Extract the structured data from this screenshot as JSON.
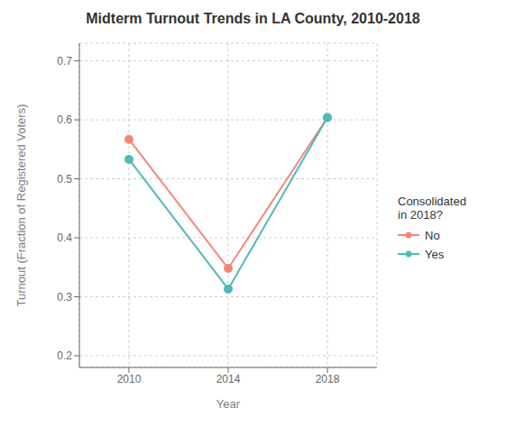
{
  "chart_data": {
    "type": "line",
    "title": "Midterm Turnout Trends in LA County, 2010-2018",
    "x_label": "Year",
    "y_label": "Turnout (Fraction of Registered Voters)",
    "x": [
      2010,
      2014,
      2018
    ],
    "series": [
      {
        "name": "No",
        "color": "#F4877A",
        "values": [
          0.567,
          0.348,
          0.604
        ],
        "marker": "circle",
        "line_style": "solid"
      },
      {
        "name": "Yes",
        "color": "#53B8BB",
        "values": [
          0.533,
          0.313,
          0.604
        ],
        "marker": "circle",
        "line_style": "solid"
      }
    ],
    "xlim": [
      2008.0,
      2020.0
    ],
    "xticks": [
      2010,
      2014,
      2018
    ],
    "ylim": [
      0.18,
      0.73
    ],
    "yticks": [
      0.2,
      0.3,
      0.4,
      0.5,
      0.6,
      0.7
    ],
    "grid": true,
    "legend": "right",
    "legend_title": "Consolidated\nin 2018?"
  }
}
